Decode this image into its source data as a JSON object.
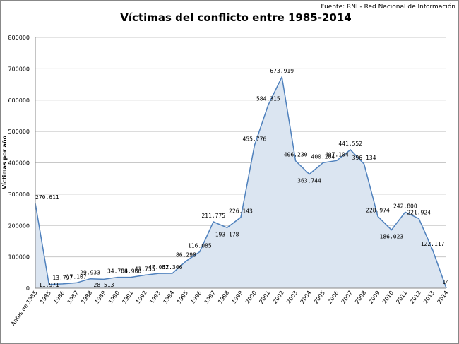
{
  "source": "Fuente: RNI - Red Nacional de Información",
  "chart_data": {
    "type": "area",
    "title": "Víctimas del conflicto entre 1985-2014",
    "y_label": "Víctimas por año",
    "categories": [
      "Antes de 1985",
      "1985",
      "1986",
      "1987",
      "1988",
      "1989",
      "1990",
      "1991",
      "1992",
      "1993",
      "1994",
      "1995",
      "1996",
      "1997",
      "1998",
      "1999",
      "2000",
      "2001",
      "2002",
      "2003",
      "2004",
      "2005",
      "2006",
      "2007",
      "2008",
      "2009",
      "2010",
      "2011",
      "2012",
      "2013",
      "2014"
    ],
    "values": [
      270611,
      11971,
      13797,
      17107,
      29933,
      28513,
      34788,
      34960,
      41755,
      47052,
      47306,
      86298,
      116085,
      211775,
      193178,
      226143,
      455776,
      584315,
      673919,
      406230,
      363744,
      400204,
      407104,
      441552,
      396134,
      228974,
      186023,
      242800,
      221924,
      122117,
      14
    ],
    "value_labels": [
      "270.611",
      "11.971",
      "13.797",
      "17.107",
      "29.933",
      "28.513",
      "34.788",
      "34.960",
      "41.755",
      "47.052",
      "47.306",
      "86.298",
      "116.085",
      "211.775",
      "193.178",
      "226.143",
      "455.776",
      "584.315",
      "673.919",
      "406.230",
      "363.744",
      "400.204",
      "407.104",
      "441.552",
      "396.134",
      "228.974",
      "186.023",
      "242.800",
      "221.924",
      "122.117",
      "14"
    ],
    "color": "#4f81bd",
    "fill": "#dbe5f1",
    "ylim": [
      0,
      800000
    ],
    "yticks": [
      0,
      100000,
      200000,
      300000,
      400000,
      500000,
      600000,
      700000,
      800000
    ],
    "grid": true
  }
}
